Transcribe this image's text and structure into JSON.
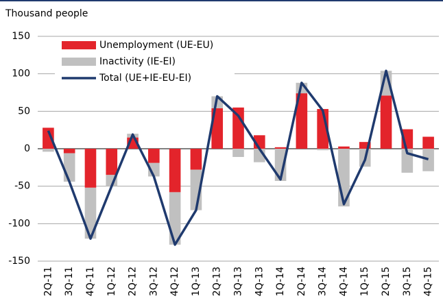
{
  "chart_data": {
    "type": "bar-line",
    "title": "Thousand people",
    "categories": [
      "2Q-11",
      "3Q-11",
      "4Q-11",
      "1Q-12",
      "2Q-12",
      "3Q-12",
      "4Q-12",
      "1Q-13",
      "2Q-13",
      "3Q-13",
      "4Q-13",
      "1Q-14",
      "2Q-14",
      "3Q-14",
      "4Q-14",
      "1Q-15",
      "2Q-15",
      "3Q-15",
      "4Q-15"
    ],
    "series": [
      {
        "name": "Unemployment (UE-EU)",
        "color": "#e3242b",
        "kind": "bar",
        "values": [
          28,
          -6,
          -52,
          -35,
          15,
          -19,
          -58,
          -28,
          54,
          55,
          18,
          2,
          74,
          53,
          3,
          9,
          71,
          26,
          16
        ]
      },
      {
        "name": "Inactivity (IE-EI)",
        "color": "#c0c0c0",
        "kind": "bar",
        "values": [
          -4,
          -38,
          -68,
          -15,
          5,
          -18,
          -70,
          -54,
          16,
          -11,
          -18,
          -43,
          14,
          -2,
          -77,
          -24,
          33,
          -32,
          -30
        ]
      },
      {
        "name": "Total (UE+IE-EU-EI)",
        "color": "#1f3a6e",
        "kind": "line",
        "values": [
          24,
          -44,
          -120,
          -50,
          19,
          -37,
          -128,
          -82,
          70,
          44,
          0,
          -41,
          88,
          51,
          -74,
          -15,
          104,
          -6,
          -14
        ]
      }
    ],
    "ylim": [
      -150,
      150
    ],
    "yticks": [
      -150,
      -100,
      -50,
      0,
      50,
      100,
      150
    ],
    "grid": true
  }
}
